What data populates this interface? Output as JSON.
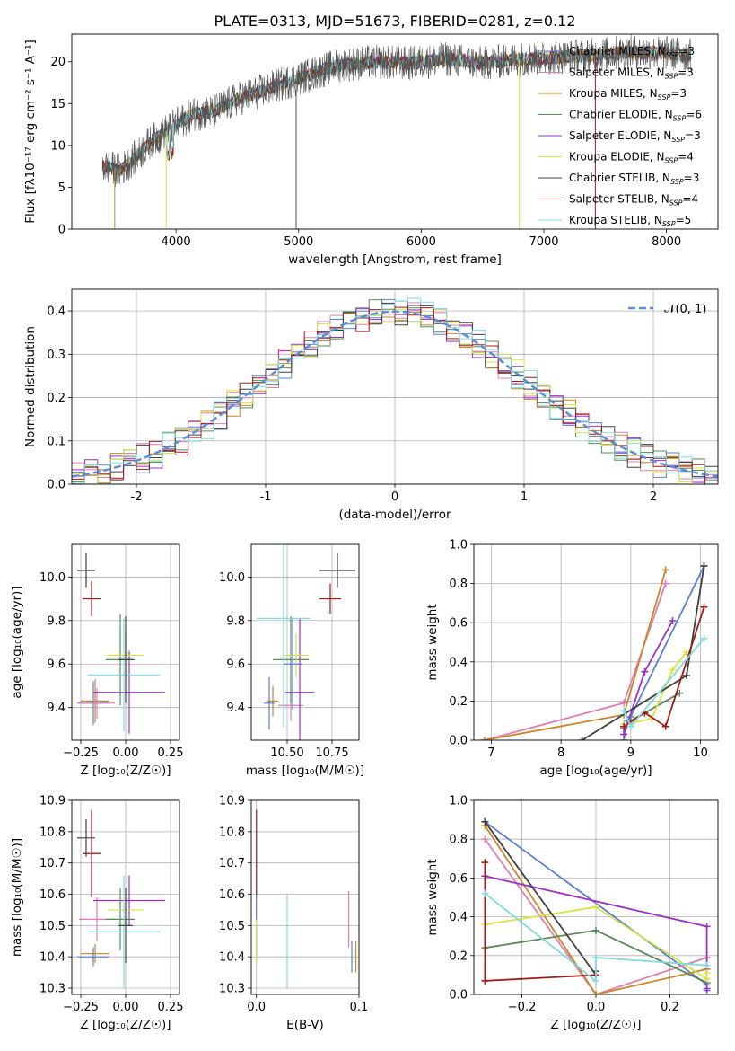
{
  "chart_data": [
    {
      "id": "spectrum",
      "type": "line",
      "title": "PLATE=0313, MJD=51673, FIBERID=0281, z=0.12",
      "xlabel": "wavelength [Angstrom, rest frame]",
      "ylabel": "Flux [fλ10⁻¹⁷ erg cm⁻² s⁻¹ A⁻¹]",
      "xlim": [
        3150,
        8420
      ],
      "ylim": [
        0,
        23.3
      ],
      "xticks": [
        4000,
        5000,
        6000,
        7000,
        8000
      ],
      "yticks": [
        0,
        5,
        10,
        15,
        20
      ],
      "grid": false,
      "legend_position": "top-right",
      "observed_color": "#555555",
      "continuum": [
        [
          3400,
          7.5
        ],
        [
          3550,
          7.0
        ],
        [
          3700,
          9.0
        ],
        [
          3800,
          10.5
        ],
        [
          3900,
          11.5
        ],
        [
          4000,
          12.5
        ],
        [
          4150,
          13.8
        ],
        [
          4300,
          14.0
        ],
        [
          4500,
          15.5
        ],
        [
          4700,
          16.5
        ],
        [
          4900,
          17.5
        ],
        [
          5100,
          18.5
        ],
        [
          5300,
          19.5
        ],
        [
          5600,
          20.0
        ],
        [
          5900,
          19.8
        ],
        [
          6200,
          20.3
        ],
        [
          6500,
          19.8
        ],
        [
          6800,
          20.3
        ],
        [
          7100,
          20.5
        ],
        [
          7400,
          20.8
        ],
        [
          7700,
          21.2
        ],
        [
          8000,
          21.0
        ],
        [
          8200,
          20.8
        ]
      ],
      "series": [
        {
          "name": "Chabrier MILES, N",
          "ssp": "3",
          "color": "#5b7fd6"
        },
        {
          "name": "Salpeter MILES, N",
          "ssp": "3",
          "color": "#e07fb0"
        },
        {
          "name": "Kroupa MILES, N",
          "ssp": "3",
          "color": "#c9862a"
        },
        {
          "name": "Chabrier ELODIE, N",
          "ssp": "6",
          "color": "#5b8a5b"
        },
        {
          "name": "Salpeter ELODIE, N",
          "ssp": "3",
          "color": "#9b30c8"
        },
        {
          "name": "Kroupa ELODIE, N",
          "ssp": "4",
          "color": "#d6e24a"
        },
        {
          "name": "Chabrier STELIB, N",
          "ssp": "3",
          "color": "#404040"
        },
        {
          "name": "Salpeter STELIB, N",
          "ssp": "4",
          "color": "#a01c1c"
        },
        {
          "name": "Kroupa STELIB, N",
          "ssp": "5",
          "color": "#7fdbe0"
        }
      ],
      "ssp_subscript": "SSP"
    },
    {
      "id": "residuals",
      "type": "histogram",
      "xlabel": "(data-model)/error",
      "ylabel": "Normed distribution",
      "xlim": [
        -2.5,
        2.5
      ],
      "ylim": [
        0,
        0.45
      ],
      "xticks": [
        -2,
        -1,
        0,
        1,
        2
      ],
      "yticks": [
        0.0,
        0.1,
        0.2,
        0.3,
        0.4
      ],
      "grid": true,
      "legend": "𝒩(0, 1)",
      "legend_position": "top-right",
      "gaussian_color": "#5b8fd6",
      "bin_width": 0.1
    },
    {
      "id": "age_vs_Z",
      "type": "errorbar",
      "xlabel": "Z [log₁₀(Z/Z☉)]",
      "ylabel": "age  [log₁₀(age/yr)]",
      "xlim": [
        -0.3,
        0.3
      ],
      "ylim": [
        9.25,
        10.15
      ],
      "xticks": [
        -0.25,
        0.0,
        0.25
      ],
      "xticklabels": [
        "−0.25",
        "0.00",
        "0.25"
      ],
      "yticks": [
        9.4,
        9.6,
        9.8,
        10.0
      ],
      "grid": true,
      "points": [
        {
          "color": "#404040",
          "x": -0.22,
          "y": 10.03,
          "xerr": 0.05,
          "yerr": 0.08
        },
        {
          "color": "#a01c1c",
          "x": -0.19,
          "y": 9.9,
          "xerr": 0.05,
          "yerr": 0.08
        },
        {
          "color": "#c9862a",
          "x": -0.17,
          "y": 9.43,
          "xerr": 0.08,
          "yerr": 0.1
        },
        {
          "color": "#5b7fd6",
          "x": -0.18,
          "y": 9.42,
          "xerr": 0.09,
          "yerr": 0.1
        },
        {
          "color": "#e07fb0",
          "x": -0.16,
          "y": 9.42,
          "xerr": 0.1,
          "yerr": 0.07
        },
        {
          "color": "#9b30c8",
          "x": 0.02,
          "y": 9.47,
          "xerr": 0.2,
          "yerr": 0.19
        },
        {
          "color": "#5b8a5b",
          "x": -0.03,
          "y": 9.62,
          "xerr": 0.08,
          "yerr": 0.21
        },
        {
          "color": "#d6e24a",
          "x": 0.0,
          "y": 9.64,
          "xerr": 0.1,
          "yerr": 0.1
        },
        {
          "color": "#7fdbe0",
          "x": -0.01,
          "y": 9.55,
          "xerr": 0.2,
          "yerr": 0.26
        },
        {
          "color": "#404040",
          "x": 0.0,
          "y": 9.62,
          "xerr": 0.04,
          "yerr": 0.2
        }
      ]
    },
    {
      "id": "age_vs_mass",
      "type": "errorbar",
      "xlabel": "mass [log₁₀(M/M☉)]",
      "xlim": [
        10.3,
        10.9
      ],
      "ylim": [
        9.25,
        10.15
      ],
      "xticks": [
        10.5,
        10.75
      ],
      "xticklabels": [
        "10.50",
        "10.75"
      ],
      "yticks": [
        9.4,
        9.6,
        9.8,
        10.0
      ],
      "grid": true,
      "points": [
        {
          "color": "#404040",
          "x": 10.78,
          "y": 10.03,
          "xerr": 0.1,
          "yerr": 0.08
        },
        {
          "color": "#a01c1c",
          "x": 10.74,
          "y": 9.9,
          "xerr": 0.06,
          "yerr": 0.07
        },
        {
          "color": "#c9862a",
          "x": 10.42,
          "y": 9.43,
          "xerr": 0.03,
          "yerr": 0.07
        },
        {
          "color": "#5b7fd6",
          "x": 10.4,
          "y": 9.42,
          "xerr": 0.03,
          "yerr": 0.12
        },
        {
          "color": "#e07fb0",
          "x": 10.52,
          "y": 9.41,
          "xerr": 0.07,
          "yerr": 0.07
        },
        {
          "color": "#9b30c8",
          "x": 10.57,
          "y": 9.47,
          "xerr": 0.08,
          "yerr": 0.34
        },
        {
          "color": "#5b8a5b",
          "x": 10.52,
          "y": 9.62,
          "xerr": 0.1,
          "yerr": 0.2
        },
        {
          "color": "#d6e24a",
          "x": 10.55,
          "y": 9.64,
          "xerr": 0.07,
          "yerr": 0.1
        },
        {
          "color": "#7fdbe0",
          "x": 10.48,
          "y": 9.81,
          "xerr": 0.15,
          "yerr": 0.5
        },
        {
          "color": "#5b7fd6",
          "x": 10.53,
          "y": 9.6,
          "xerr": 0.05,
          "yerr": 0.21
        }
      ]
    },
    {
      "id": "weight_vs_age",
      "type": "line",
      "xlabel": "age  [log₁₀(age/yr)]",
      "ylabel": "mass weight",
      "xlim": [
        6.75,
        10.25
      ],
      "ylim": [
        0.0,
        1.0
      ],
      "xticks": [
        7,
        8,
        9,
        10
      ],
      "yticks": [
        0.0,
        0.2,
        0.4,
        0.6,
        0.8,
        1.0
      ],
      "grid": true,
      "series": [
        {
          "color": "#5b7fd6",
          "points": [
            [
              8.9,
              0.0
            ],
            [
              8.95,
              0.1
            ],
            [
              9.0,
              0.12
            ],
            [
              10.05,
              0.89
            ]
          ]
        },
        {
          "color": "#e07fb0",
          "points": [
            [
              6.9,
              0.0
            ],
            [
              8.9,
              0.19
            ],
            [
              9.5,
              0.8
            ]
          ]
        },
        {
          "color": "#c9862a",
          "points": [
            [
              6.9,
              0.0
            ],
            [
              8.9,
              0.13
            ],
            [
              9.5,
              0.87
            ]
          ]
        },
        {
          "color": "#5b8a5b",
          "points": [
            [
              8.9,
              0.06
            ],
            [
              9.0,
              0.1
            ],
            [
              9.7,
              0.24
            ]
          ]
        },
        {
          "color": "#9b30c8",
          "points": [
            [
              8.9,
              0.03
            ],
            [
              9.2,
              0.35
            ],
            [
              9.6,
              0.61
            ]
          ]
        },
        {
          "color": "#d6e24a",
          "points": [
            [
              8.9,
              0.08
            ],
            [
              9.3,
              0.11
            ],
            [
              9.6,
              0.36
            ],
            [
              9.8,
              0.45
            ]
          ]
        },
        {
          "color": "#404040",
          "points": [
            [
              8.3,
              0.0
            ],
            [
              9.8,
              0.33
            ],
            [
              10.05,
              0.89
            ]
          ]
        },
        {
          "color": "#a01c1c",
          "points": [
            [
              8.9,
              0.07
            ],
            [
              9.2,
              0.14
            ],
            [
              9.5,
              0.07
            ],
            [
              10.05,
              0.68
            ]
          ]
        },
        {
          "color": "#7fdbe0",
          "points": [
            [
              8.9,
              0.15
            ],
            [
              9.0,
              0.07
            ],
            [
              10.05,
              0.52
            ]
          ]
        }
      ]
    },
    {
      "id": "mass_vs_Z",
      "type": "errorbar",
      "xlabel": "Z [log₁₀(Z/Z☉)]",
      "ylabel": "mass [log₁₀(M/M☉)]",
      "xlim": [
        -0.3,
        0.3
      ],
      "ylim": [
        10.28,
        10.9
      ],
      "xticks": [
        -0.25,
        0.0,
        0.25
      ],
      "xticklabels": [
        "−0.25",
        "0.00",
        "0.25"
      ],
      "yticks": [
        10.3,
        10.4,
        10.5,
        10.6,
        10.7,
        10.8,
        10.9
      ],
      "grid": true,
      "points": [
        {
          "color": "#404040",
          "x": -0.22,
          "y": 10.78,
          "xerr": 0.05,
          "yerr": 0.06
        },
        {
          "color": "#a01c1c",
          "x": -0.19,
          "y": 10.73,
          "xerr": 0.05,
          "yerr": 0.14
        },
        {
          "color": "#c9862a",
          "x": -0.17,
          "y": 10.41,
          "xerr": 0.08,
          "yerr": 0.03
        },
        {
          "color": "#5b7fd6",
          "x": -0.18,
          "y": 10.4,
          "xerr": 0.09,
          "yerr": 0.03
        },
        {
          "color": "#e07fb0",
          "x": -0.16,
          "y": 10.52,
          "xerr": 0.1,
          "yerr": 0.07
        },
        {
          "color": "#9b30c8",
          "x": 0.02,
          "y": 10.58,
          "xerr": 0.2,
          "yerr": 0.08
        },
        {
          "color": "#5b8a5b",
          "x": -0.03,
          "y": 10.52,
          "xerr": 0.08,
          "yerr": 0.1
        },
        {
          "color": "#d6e24a",
          "x": 0.0,
          "y": 10.55,
          "xerr": 0.1,
          "yerr": 0.07
        },
        {
          "color": "#7fdbe0",
          "x": -0.01,
          "y": 10.48,
          "xerr": 0.2,
          "yerr": 0.18
        },
        {
          "color": "#404040",
          "x": 0.0,
          "y": 10.5,
          "xerr": 0.04,
          "yerr": 0.12
        }
      ]
    },
    {
      "id": "mass_vs_ebv",
      "type": "errorbar",
      "xlabel": "E(B-V)",
      "xlim": [
        -0.005,
        0.1
      ],
      "ylim": [
        10.28,
        10.9
      ],
      "xticks": [
        0.0,
        0.1
      ],
      "xticklabels": [
        "0.0",
        "0.1"
      ],
      "yticks": [
        10.3,
        10.4,
        10.5,
        10.6,
        10.7,
        10.8,
        10.9
      ],
      "grid": true,
      "points": [
        {
          "color": "#a01c1c",
          "x": 0.0,
          "y": 10.73,
          "xerr": 0.0,
          "yerr": 0.14
        },
        {
          "color": "#5b7fd6",
          "x": 0.0,
          "y": 10.5,
          "xerr": 0.0,
          "yerr": 0.1
        },
        {
          "color": "#d6e24a",
          "x": 0.0,
          "y": 10.45,
          "xerr": 0.0,
          "yerr": 0.07
        },
        {
          "color": "#7fdbe0",
          "x": 0.03,
          "y": 10.45,
          "xerr": 0.0,
          "yerr": 0.15
        },
        {
          "color": "#e07fb0",
          "x": 0.09,
          "y": 10.52,
          "xerr": 0.0,
          "yerr": 0.09
        },
        {
          "color": "#5b7fd6",
          "x": 0.093,
          "y": 10.4,
          "xerr": 0.0,
          "yerr": 0.05
        },
        {
          "color": "#c9862a",
          "x": 0.097,
          "y": 10.4,
          "xerr": 0.0,
          "yerr": 0.05
        }
      ]
    },
    {
      "id": "weight_vs_Z",
      "type": "line",
      "xlabel": "Z [log₁₀(Z/Z☉)]",
      "ylabel": "mass weight",
      "xlim": [
        -0.33,
        0.33
      ],
      "ylim": [
        0.0,
        1.0
      ],
      "xticks": [
        -0.2,
        0.0,
        0.2
      ],
      "xticklabels": [
        "−0.2",
        "0.0",
        "0.2"
      ],
      "yticks": [
        0.0,
        0.2,
        0.4,
        0.6,
        0.8,
        1.0
      ],
      "grid": true,
      "series": [
        {
          "color": "#5b7fd6",
          "points": [
            [
              -0.3,
              0.89
            ],
            [
              0.3,
              0.05
            ],
            [
              0.3,
              0.02
            ]
          ]
        },
        {
          "color": "#e07fb0",
          "points": [
            [
              -0.3,
              0.8
            ],
            [
              0.0,
              0.0
            ],
            [
              0.3,
              0.19
            ]
          ]
        },
        {
          "color": "#c9862a",
          "points": [
            [
              -0.3,
              0.87
            ],
            [
              0.0,
              0.0
            ],
            [
              0.3,
              0.13
            ]
          ]
        },
        {
          "color": "#5b8a5b",
          "points": [
            [
              -0.3,
              0.24
            ],
            [
              0.0,
              0.33
            ],
            [
              0.3,
              0.06
            ]
          ]
        },
        {
          "color": "#9b30c8",
          "points": [
            [
              -0.3,
              0.61
            ],
            [
              0.3,
              0.35
            ],
            [
              0.3,
              0.03
            ]
          ]
        },
        {
          "color": "#d6e24a",
          "points": [
            [
              -0.3,
              0.36
            ],
            [
              0.0,
              0.45
            ],
            [
              0.3,
              0.08
            ],
            [
              0.3,
              0.11
            ]
          ]
        },
        {
          "color": "#404040",
          "points": [
            [
              -0.3,
              0.89
            ],
            [
              0.0,
              0.1
            ],
            [
              0.0,
              0.12
            ]
          ]
        },
        {
          "color": "#a01c1c",
          "points": [
            [
              -0.3,
              0.68
            ],
            [
              -0.3,
              0.07
            ],
            [
              0.0,
              0.1
            ]
          ]
        },
        {
          "color": "#7fdbe0",
          "points": [
            [
              -0.3,
              0.52
            ],
            [
              0.0,
              0.07
            ],
            [
              0.0,
              0.19
            ],
            [
              0.3,
              0.15
            ]
          ]
        }
      ]
    }
  ]
}
